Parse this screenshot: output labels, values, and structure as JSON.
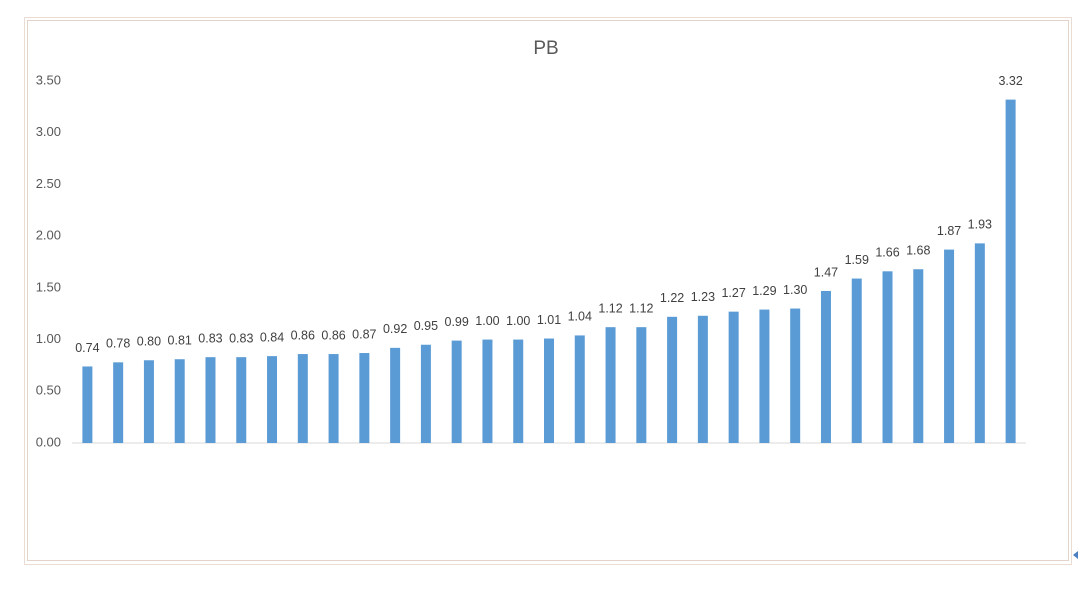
{
  "chart_data": {
    "type": "bar",
    "title": "PB",
    "categories": [
      null,
      null,
      null,
      null,
      null,
      null,
      null,
      null,
      null,
      null,
      null,
      null,
      null,
      null,
      null,
      null,
      null,
      null,
      null,
      null,
      null,
      null,
      null,
      null,
      null,
      null,
      null,
      null,
      null,
      null,
      null
    ],
    "values": [
      0.74,
      0.78,
      0.8,
      0.81,
      0.83,
      0.83,
      0.84,
      0.86,
      0.86,
      0.87,
      0.92,
      0.95,
      0.99,
      1.0,
      1.0,
      1.01,
      1.04,
      1.12,
      1.12,
      1.22,
      1.23,
      1.27,
      1.29,
      1.3,
      1.47,
      1.59,
      1.66,
      1.68,
      1.87,
      1.93,
      3.32
    ],
    "value_labels": [
      "0.74",
      "0.78",
      "0.80",
      "0.81",
      "0.83",
      "0.83",
      "0.84",
      "0.86",
      "0.86",
      "0.87",
      "0.92",
      "0.95",
      "0.99",
      "1.00",
      "1.00",
      "1.01",
      "1.04",
      "1.12",
      "1.12",
      "1.22",
      "1.23",
      "1.27",
      "1.29",
      "1.30",
      "1.47",
      "1.59",
      "1.66",
      "1.68",
      "1.87",
      "1.93",
      "3.32"
    ],
    "color": "#5b9bd5",
    "ylim": [
      0,
      3.5
    ],
    "yticks": [
      {
        "value": 0,
        "label": "0.00"
      },
      {
        "value": 0.5,
        "label": "0.50"
      },
      {
        "value": 1,
        "label": "1.00"
      },
      {
        "value": 1.5,
        "label": "1.50"
      },
      {
        "value": 2,
        "label": "2.00"
      },
      {
        "value": 2.5,
        "label": "2.50"
      },
      {
        "value": 3,
        "label": "3.00"
      },
      {
        "value": 3.5,
        "label": "3.50"
      }
    ],
    "grid": false
  }
}
